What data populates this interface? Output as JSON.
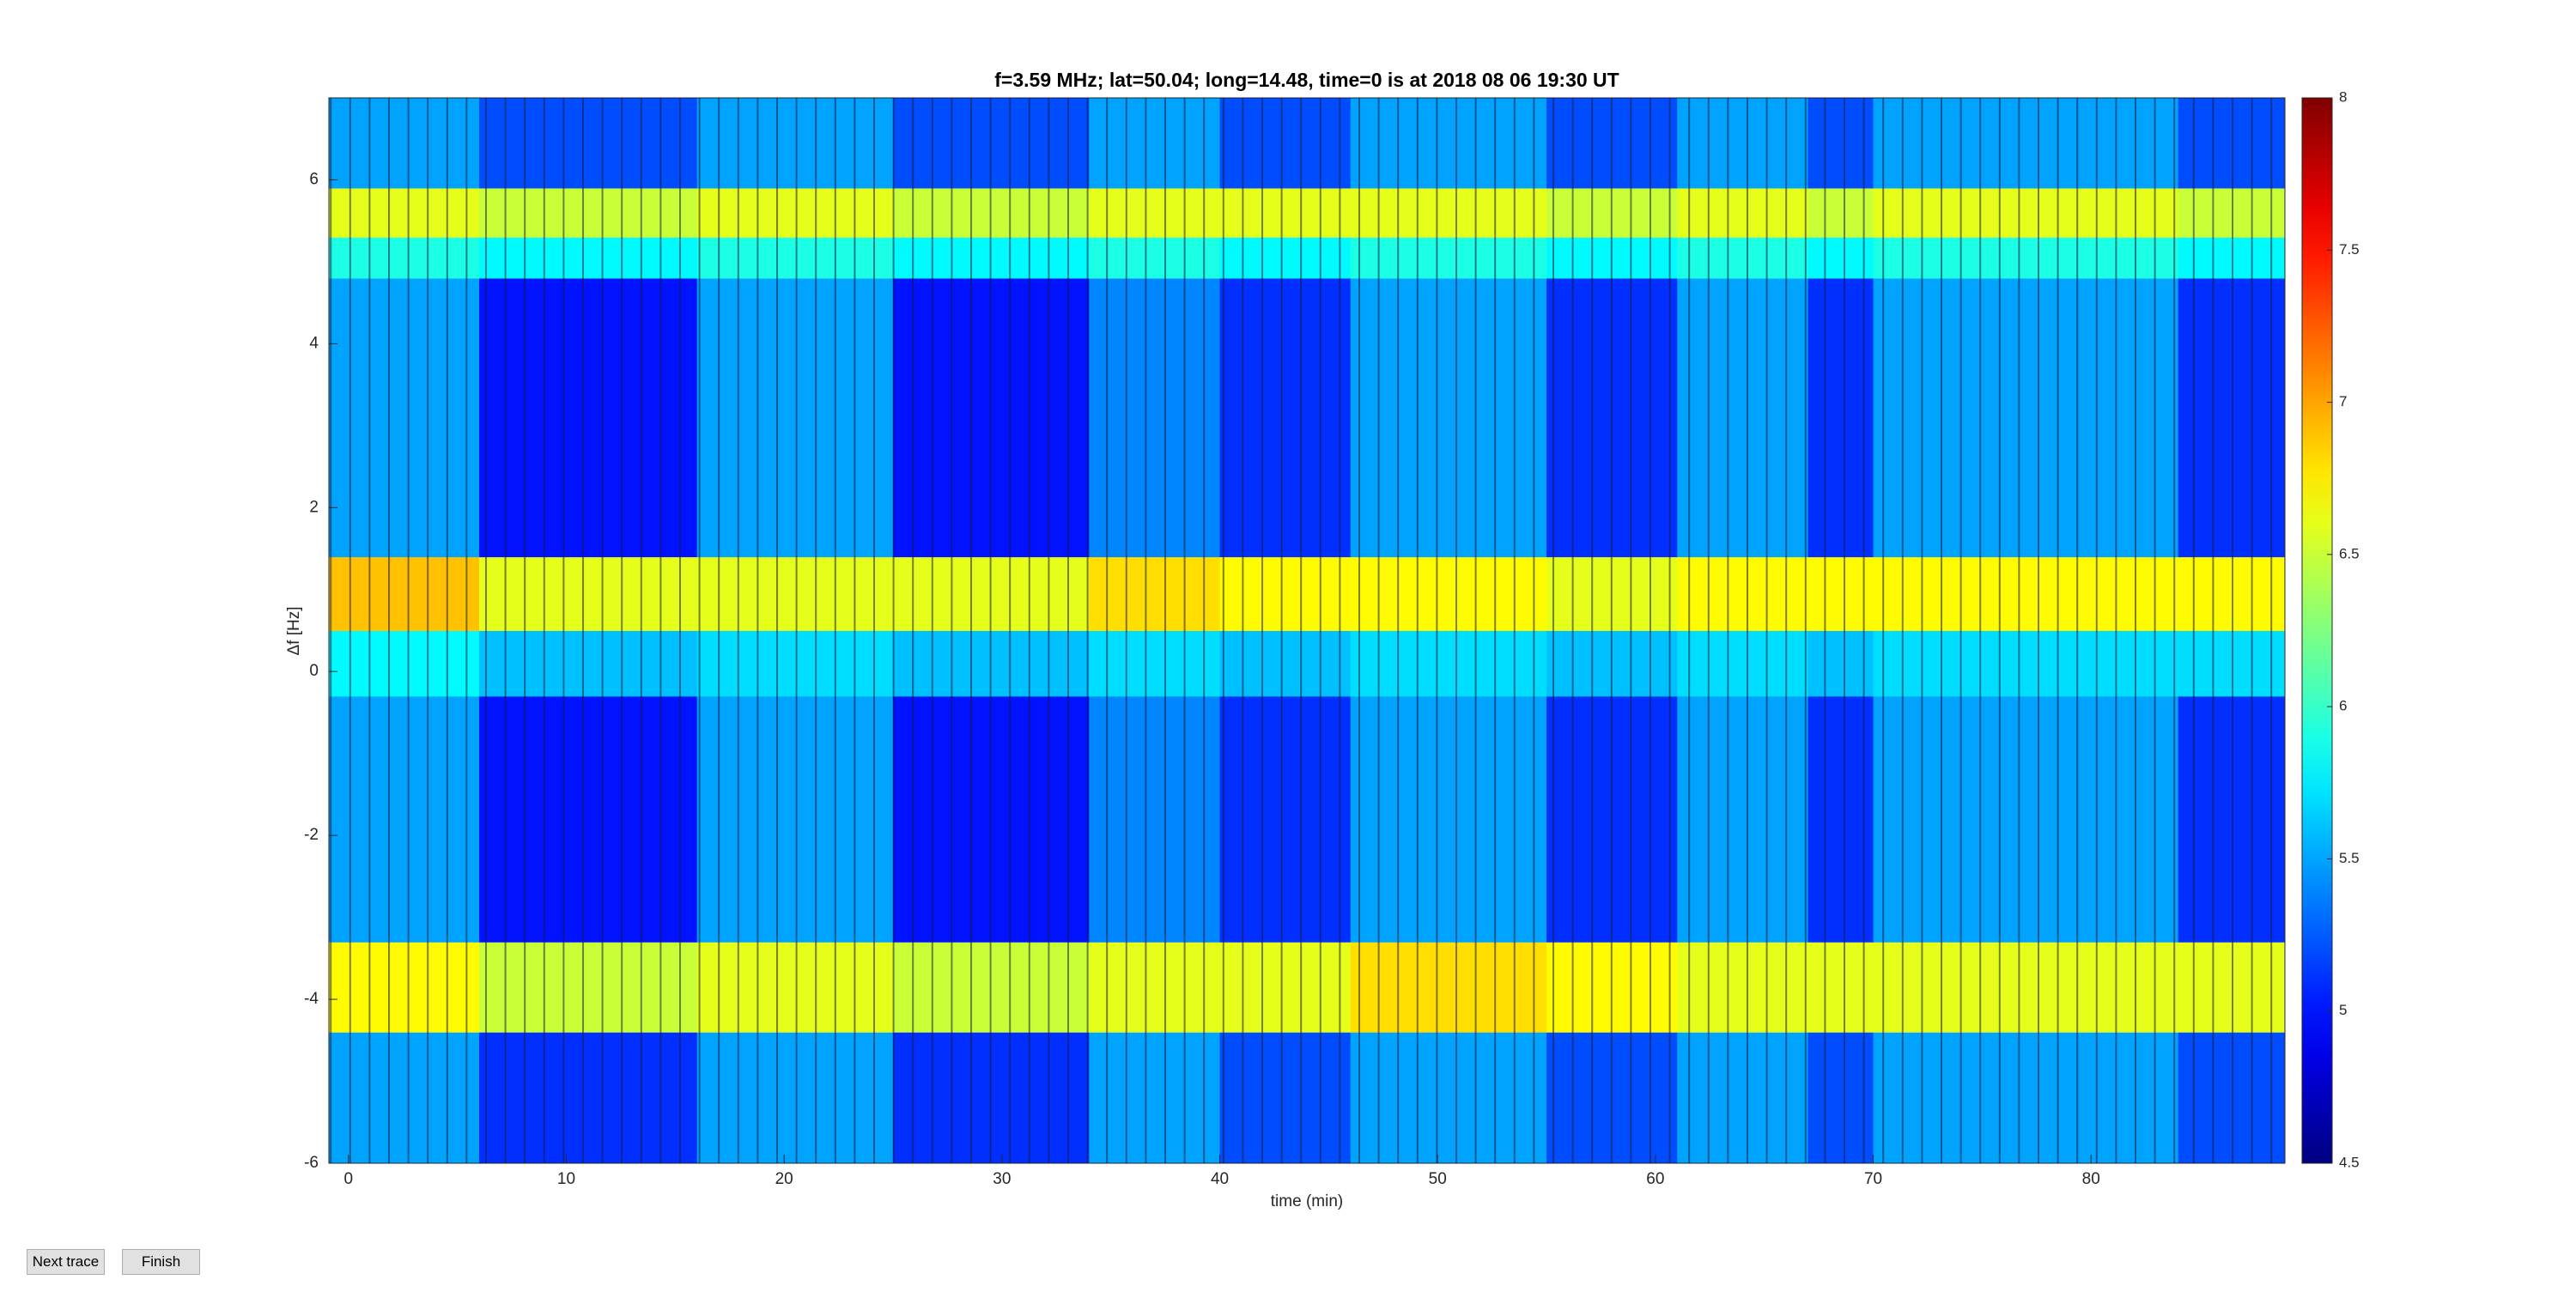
{
  "chart_data": {
    "type": "heatmap",
    "title": "f=3.59 MHz;  lat=50.04; long=14.48, time=0 is at 2018 08 06 19:30 UT",
    "xlabel": "time (min)",
    "ylabel": "Δf [Hz]",
    "xlim": [
      -0.9,
      88.9
    ],
    "xticks": [
      0,
      10,
      20,
      30,
      40,
      50,
      60,
      70,
      80
    ],
    "ylim": [
      -6,
      7
    ],
    "yticks": [
      -6,
      -4,
      -2,
      0,
      2,
      4,
      6
    ],
    "clim": [
      4.5,
      8
    ],
    "cticks": [
      4.5,
      5,
      5.5,
      6,
      6.5,
      7,
      7.5,
      8
    ],
    "colormap": "jet",
    "x_edges": [
      -0.9,
      6,
      16,
      25,
      34,
      40,
      46,
      55,
      61,
      67,
      70,
      84,
      88.9
    ],
    "y_edges": [
      -6,
      -4.4,
      -3.3,
      -0.3,
      0.5,
      1.4,
      4.8,
      5.3,
      5.9,
      7
    ],
    "z": [
      [
        5.5,
        5.1,
        5.5,
        5.1,
        5.5,
        5.2,
        5.5,
        5.2,
        5.5,
        5.2,
        5.5,
        5.2
      ],
      [
        6.7,
        6.5,
        6.6,
        6.5,
        6.6,
        6.6,
        6.8,
        6.7,
        6.6,
        6.6,
        6.6,
        6.6
      ],
      [
        5.5,
        5.0,
        5.5,
        5.0,
        5.4,
        5.1,
        5.5,
        5.1,
        5.5,
        5.1,
        5.5,
        5.1
      ],
      [
        5.8,
        5.6,
        5.7,
        5.6,
        5.7,
        5.6,
        5.7,
        5.6,
        5.7,
        5.6,
        5.7,
        5.7
      ],
      [
        6.9,
        6.6,
        6.6,
        6.6,
        6.8,
        6.7,
        6.7,
        6.6,
        6.7,
        6.7,
        6.7,
        6.7
      ],
      [
        5.5,
        5.0,
        5.5,
        5.0,
        5.4,
        5.1,
        5.5,
        5.1,
        5.5,
        5.1,
        5.5,
        5.1
      ],
      [
        5.9,
        5.8,
        5.9,
        5.8,
        5.9,
        5.8,
        5.9,
        5.8,
        5.9,
        5.8,
        5.9,
        5.8
      ],
      [
        6.6,
        6.5,
        6.6,
        6.5,
        6.6,
        6.6,
        6.6,
        6.5,
        6.6,
        6.5,
        6.6,
        6.5
      ],
      [
        5.5,
        5.2,
        5.5,
        5.2,
        5.5,
        5.2,
        5.5,
        5.2,
        5.5,
        5.2,
        5.5,
        5.2
      ]
    ]
  },
  "buttons": [
    "Next trace",
    "Finish"
  ]
}
